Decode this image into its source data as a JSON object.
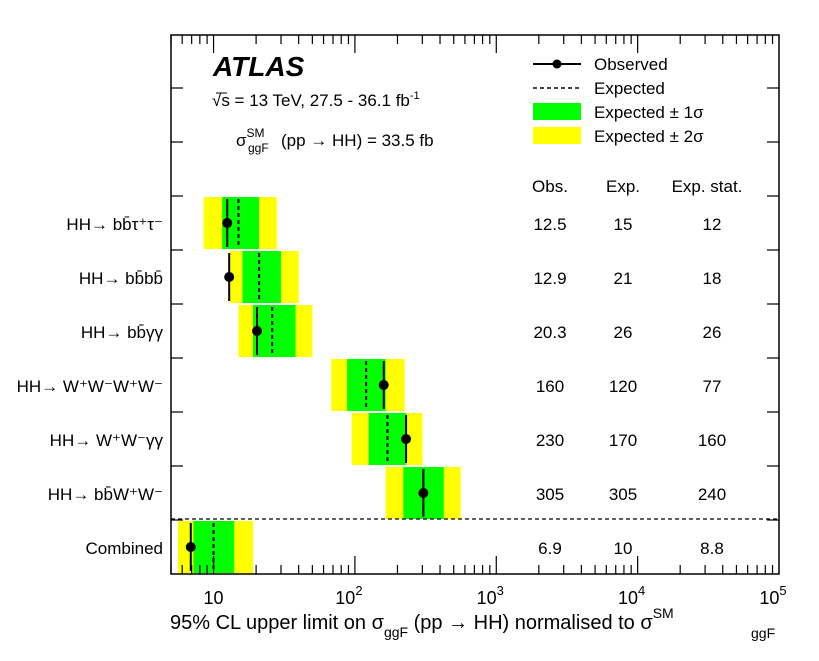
{
  "chart_data": {
    "type": "bar",
    "experiment": "ATLAS",
    "energy_label": "√s = 13 TeV,  27.5 - 36.1 fb",
    "energy_sup": "-1",
    "sigma_label": {
      "sym": "σ",
      "sup": "SM",
      "sub": "ggF",
      "rest": "(pp → HH) = 33.5 fb"
    },
    "xlabel": {
      "main": "95% CL upper limit on σ",
      "sub1": "ggF",
      "mid": " (pp → HH) normalised to σ",
      "sup2": "SM",
      "sub2": "ggF"
    },
    "x_scale": "log",
    "xlim": [
      5,
      100000
    ],
    "x_ticks": [
      {
        "value": 10,
        "base": "10",
        "exp": ""
      },
      {
        "value": 100,
        "base": "10",
        "exp": "2"
      },
      {
        "value": 1000,
        "base": "10",
        "exp": "3"
      },
      {
        "value": 10000,
        "base": "10",
        "exp": "4"
      },
      {
        "value": 100000,
        "base": "10",
        "exp": "5"
      }
    ],
    "legend": {
      "placement": "top-right",
      "observed": "Observed",
      "expected": "Expected",
      "band1": "Expected ± 1σ",
      "band2": "Expected ± 2σ"
    },
    "colors": {
      "band1": "#00ff00",
      "band2": "#ffff00",
      "line": "#000000"
    },
    "table_headers": [
      "Obs.",
      "Exp.",
      "Exp. stat."
    ],
    "rows": [
      {
        "name": "HH→ bb̄τ⁺τ⁻",
        "label": {
          "main": "HH→ bb̄ττ",
          "sup": "+-"
        },
        "observed": 12.5,
        "expected": 15,
        "band1": [
          11.5,
          21
        ],
        "band2": [
          8.5,
          28
        ],
        "obs_text": "12.5",
        "exp_text": "15",
        "stat_text": "12"
      },
      {
        "name": "HH→ bb̄bb̄",
        "label": {
          "main": "HH→ bb̄bb̄",
          "sup": ""
        },
        "observed": 12.9,
        "expected": 21,
        "band1": [
          16,
          30
        ],
        "band2": [
          13,
          40
        ],
        "obs_text": "12.9",
        "exp_text": "21",
        "stat_text": "18"
      },
      {
        "name": "HH→ bb̄γγ",
        "label": {
          "main": "HH→ bb̄γγ",
          "sup": ""
        },
        "observed": 20.3,
        "expected": 26,
        "band1": [
          19,
          38
        ],
        "band2": [
          15,
          50
        ],
        "obs_text": "20.3",
        "exp_text": "26",
        "stat_text": "26"
      },
      {
        "name": "HH→ W⁺W⁻W⁺W⁻",
        "label": {
          "main": "HH→ WWWW",
          "sup": "+-+-"
        },
        "observed": 160,
        "expected": 120,
        "band1": [
          88,
          165
        ],
        "band2": [
          68,
          225
        ],
        "obs_text": "160",
        "exp_text": "120",
        "stat_text": "77"
      },
      {
        "name": "HH→ W⁺W⁻γγ",
        "label": {
          "main": "HH→ WWγγ",
          "sup": "+-"
        },
        "observed": 230,
        "expected": 170,
        "band1": [
          125,
          230
        ],
        "band2": [
          95,
          300
        ],
        "obs_text": "230",
        "exp_text": "170",
        "stat_text": "160"
      },
      {
        "name": "HH→ bb̄W⁺W⁻",
        "label": {
          "main": "HH→ bb̄WW",
          "sup": "+-"
        },
        "observed": 305,
        "expected": 305,
        "band1": [
          220,
          425
        ],
        "band2": [
          165,
          560
        ],
        "obs_text": "305",
        "exp_text": "305",
        "stat_text": "240"
      },
      {
        "name": "Combined",
        "label": {
          "main": "Combined",
          "sup": ""
        },
        "observed": 6.9,
        "expected": 10,
        "band1": [
          7.2,
          14
        ],
        "band2": [
          5.6,
          19
        ],
        "obs_text": "6.9",
        "exp_text": "10",
        "stat_text": "8.8"
      }
    ]
  }
}
